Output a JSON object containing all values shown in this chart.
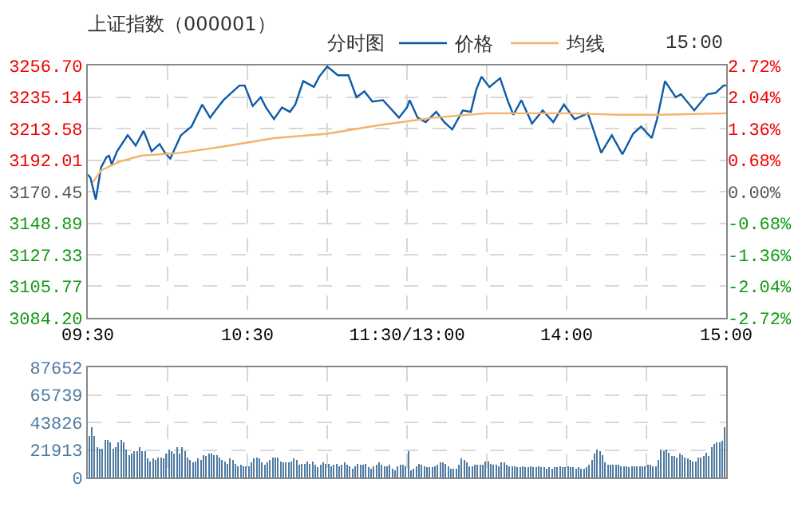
{
  "chart_data": [
    {
      "type": "line",
      "title": "上证指数（000001）",
      "subtitle": "分时图",
      "annotations": [
        "15:00"
      ],
      "legend": "top",
      "grid": true,
      "categories": [
        "09:30",
        null,
        null,
        null,
        null,
        null,
        null,
        null,
        null,
        null,
        null,
        null,
        null,
        null,
        null,
        null,
        null,
        null,
        null,
        null,
        null,
        null,
        null,
        null,
        null,
        null,
        null,
        null,
        null,
        null,
        null,
        null,
        null,
        null,
        null,
        null,
        null,
        null,
        null,
        null,
        null,
        null,
        null,
        null,
        null,
        null,
        null,
        null,
        null,
        null,
        null,
        null,
        null,
        null,
        null,
        null,
        null,
        null,
        null,
        null,
        "10:30",
        null,
        null,
        null,
        null,
        null,
        null,
        null,
        null,
        null,
        null,
        null,
        null,
        null,
        null,
        null,
        null,
        null,
        null,
        null,
        null,
        null,
        null,
        null,
        null,
        null,
        null,
        null,
        null,
        null,
        null,
        null,
        null,
        null,
        null,
        null,
        null,
        null,
        null,
        null,
        null,
        null,
        null,
        null,
        null,
        null,
        null,
        null,
        null,
        null,
        null,
        null,
        null,
        null,
        null,
        null,
        null,
        null,
        null,
        null,
        "11:30/13:00",
        null,
        null,
        null,
        null,
        null,
        null,
        null,
        null,
        null,
        null,
        null,
        null,
        null,
        null,
        null,
        null,
        null,
        null,
        null,
        null,
        null,
        null,
        null,
        null,
        null,
        null,
        null,
        null,
        null,
        null,
        null,
        null,
        null,
        null,
        null,
        null,
        null,
        null,
        null,
        null,
        null,
        null,
        null,
        null,
        null,
        null,
        null,
        null,
        null,
        null,
        null,
        null,
        null,
        null,
        null,
        null,
        null,
        null,
        null,
        "14:00",
        null,
        null,
        null,
        null,
        null,
        null,
        null,
        null,
        null,
        null,
        null,
        null,
        null,
        null,
        null,
        null,
        null,
        null,
        null,
        null,
        null,
        null,
        null,
        null,
        null,
        null,
        null,
        null,
        null,
        null,
        null,
        null,
        null,
        null,
        null,
        null,
        null,
        null,
        null,
        null,
        null,
        null,
        null,
        null,
        null,
        null,
        null,
        null,
        null,
        null,
        null,
        null,
        null,
        null,
        null,
        null,
        null,
        null,
        null,
        "15:00"
      ],
      "ylim": [
        3084.2,
        3256.7
      ],
      "yticks": [
        {
          "value": 3084.2,
          "label": "3084.20"
        },
        {
          "value": 3105.77,
          "label": "3105.77"
        },
        {
          "value": 3127.33,
          "label": "3127.33"
        },
        {
          "value": 3148.89,
          "label": "3148.89"
        },
        {
          "value": 3170.45,
          "label": "3170.45"
        },
        {
          "value": 3192.01,
          "label": "3192.01"
        },
        {
          "value": 3213.58,
          "label": "3213.58"
        },
        {
          "value": 3235.14,
          "label": "3235.14"
        },
        {
          "value": 3256.7,
          "label": "3256.70"
        }
      ],
      "y2lim": [
        -2.72,
        2.72
      ],
      "y2ticks": [
        {
          "value": -2.72,
          "label": "-2.72%"
        },
        {
          "value": -2.04,
          "label": "-2.04%"
        },
        {
          "value": -1.36,
          "label": "-1.36%"
        },
        {
          "value": -0.68,
          "label": "-0.68%"
        },
        {
          "value": 0,
          "label": "0.00%"
        },
        {
          "value": 0.68,
          "label": "0.68%"
        },
        {
          "value": 1.36,
          "label": "1.36%"
        },
        {
          "value": 2.04,
          "label": "2.04%"
        },
        {
          "value": 2.72,
          "label": "2.72%"
        }
      ],
      "series": [
        {
          "name": "价格",
          "color": "#0d5ba8",
          "values": [
            3182,
            3180,
            null,
            3165,
            null,
            3187,
            null,
            3194,
            3195,
            3189,
            null,
            3198,
            null,
            null,
            null,
            3209,
            null,
            null,
            3202,
            null,
            null,
            3212,
            null,
            null,
            3198,
            null,
            null,
            3203,
            null,
            3197,
            null,
            3193,
            null,
            null,
            null,
            3209,
            null,
            null,
            null,
            3215,
            null,
            null,
            null,
            3230,
            null,
            null,
            3221,
            null,
            3226,
            null,
            null,
            3233,
            null,
            null,
            null,
            null,
            null,
            3243,
            null,
            3243,
            null,
            null,
            3229,
            null,
            null,
            3235,
            null,
            3228,
            null,
            null,
            3220,
            null,
            null,
            3228,
            null,
            null,
            3225,
            null,
            3230,
            null,
            null,
            3246,
            null,
            null,
            null,
            3242,
            null,
            3249,
            null,
            null,
            3256,
            null,
            null,
            null,
            3250,
            null,
            null,
            null,
            3250,
            null,
            null,
            3235,
            null,
            null,
            3239,
            null,
            null,
            3232,
            null,
            null,
            null,
            3233,
            null,
            null,
            null,
            null,
            null,
            3221,
            null,
            null,
            3228,
            3233,
            null,
            null,
            3221,
            null,
            null,
            3218,
            null,
            null,
            null,
            3225,
            null,
            null,
            3218,
            null,
            null,
            3213,
            null,
            null,
            null,
            3226,
            null,
            null,
            3225,
            null,
            3240,
            null,
            3249,
            null,
            null,
            3242,
            null,
            null,
            null,
            3248,
            null,
            null,
            3232,
            null,
            3223,
            null,
            null,
            3233,
            null,
            null,
            null,
            3217,
            null,
            null,
            null,
            3226,
            null,
            null,
            null,
            3218,
            null,
            null,
            null,
            3230,
            null,
            null,
            null,
            3220,
            null,
            null,
            null,
            null,
            3224,
            null,
            null,
            null,
            null,
            3197,
            null,
            null,
            null,
            3209,
            null,
            null,
            null,
            3196,
            null,
            null,
            null,
            3210,
            null,
            null,
            3215,
            null,
            null,
            null,
            3207,
            null,
            3220,
            null,
            null,
            3246,
            null,
            null,
            null,
            3235,
            null,
            3237,
            null,
            null,
            null,
            null,
            3226,
            null,
            null,
            null,
            null,
            3237,
            null,
            null,
            3238,
            null,
            null,
            3243,
            3243
          ]
        },
        {
          "name": "均线",
          "color": "#f5b26b",
          "values": [
            null,
            null,
            3177,
            null,
            null,
            3185,
            null,
            null,
            null,
            null,
            null,
            null,
            3191,
            null,
            null,
            null,
            null,
            null,
            null,
            null,
            3195,
            null,
            null,
            null,
            null,
            null,
            null,
            null,
            null,
            null,
            null,
            null,
            null,
            null,
            null,
            3197,
            null,
            null,
            null,
            null,
            null,
            null,
            null,
            null,
            null,
            null,
            null,
            null,
            null,
            null,
            3201,
            null,
            null,
            null,
            null,
            null,
            null,
            null,
            null,
            null,
            null,
            null,
            null,
            null,
            null,
            null,
            null,
            null,
            null,
            null,
            3207,
            null,
            null,
            null,
            null,
            null,
            null,
            null,
            null,
            null,
            null,
            null,
            null,
            null,
            null,
            null,
            null,
            null,
            null,
            null,
            3210,
            null,
            null,
            null,
            null,
            null,
            null,
            null,
            null,
            null,
            null,
            null,
            null,
            null,
            null,
            null,
            null,
            null,
            null,
            null,
            3216,
            null,
            null,
            null,
            null,
            null,
            null,
            null,
            null,
            null,
            null,
            null,
            null,
            null,
            null,
            null,
            null,
            null,
            null,
            null,
            3221,
            null,
            null,
            null,
            null,
            null,
            null,
            null,
            null,
            null,
            null,
            null,
            null,
            null,
            null,
            null,
            null,
            null,
            null,
            null,
            3224,
            null,
            null,
            null,
            null,
            null,
            null,
            null,
            null,
            null,
            null,
            null,
            null,
            null,
            null,
            null,
            null,
            null,
            null,
            null,
            null,
            null,
            null,
            null,
            null,
            null,
            null,
            null,
            null,
            null,
            3224,
            null,
            null,
            null,
            null,
            null,
            null,
            null,
            null,
            null,
            null,
            null,
            null,
            null,
            null,
            null,
            null,
            null,
            null,
            null,
            3223,
            null,
            null,
            null,
            null,
            null,
            null,
            null,
            null,
            null,
            null,
            null,
            null,
            null,
            null,
            3223,
            null,
            null,
            null,
            null,
            null,
            null,
            null,
            null,
            null,
            null,
            null,
            null,
            null,
            null,
            null,
            null,
            null,
            null,
            null,
            null,
            null,
            null,
            null,
            null,
            3224
          ]
        }
      ]
    },
    {
      "type": "bar",
      "grid": true,
      "tick_labels": "y",
      "color": "#4f7aa1",
      "categories": [
        null,
        null,
        null,
        null,
        null,
        null,
        null,
        null,
        null,
        null,
        null,
        null,
        null,
        null,
        null,
        null,
        null,
        null,
        null,
        null,
        null,
        null,
        null,
        null,
        null,
        null,
        null,
        null,
        null,
        null,
        null,
        null,
        null,
        null,
        null,
        null,
        null,
        null,
        null,
        null,
        null,
        null,
        null,
        null,
        null,
        null,
        null,
        null,
        null,
        null,
        null,
        null,
        null,
        null,
        null,
        null,
        null,
        null,
        null,
        null,
        null,
        null,
        null,
        null,
        null,
        null,
        null,
        null,
        null,
        null,
        null,
        null,
        null,
        null,
        null,
        null,
        null,
        null,
        null,
        null,
        null,
        null,
        null,
        null,
        null,
        null,
        null,
        null,
        null,
        null,
        null,
        null,
        null,
        null,
        null,
        null,
        null,
        null,
        null,
        null,
        null,
        null,
        null,
        null,
        null,
        null,
        null,
        null,
        null,
        null,
        null,
        null,
        null,
        null,
        null,
        null,
        null,
        null,
        null,
        null,
        null,
        null,
        null,
        null,
        null,
        null,
        null,
        null,
        null,
        null,
        null,
        null,
        null,
        null,
        null,
        null,
        null,
        null,
        null,
        null,
        null,
        null,
        null,
        null,
        null,
        null,
        null,
        null,
        null,
        null,
        null,
        null,
        null,
        null,
        null,
        null,
        null,
        null,
        null,
        null,
        null,
        null,
        null,
        null,
        null,
        null,
        null,
        null,
        null,
        null,
        null,
        null,
        null,
        null,
        null,
        null,
        null,
        null,
        null,
        null,
        null,
        null,
        null,
        null,
        null,
        null,
        null,
        null,
        null,
        null,
        null,
        null,
        null,
        null,
        null,
        null,
        null,
        null,
        null,
        null,
        null,
        null,
        null,
        null,
        null,
        null,
        null,
        null,
        null,
        null,
        null,
        null,
        null,
        null,
        null,
        null,
        null,
        null,
        null,
        null,
        null,
        null,
        null,
        null,
        null,
        null,
        null,
        null,
        null,
        null,
        null,
        null,
        null,
        null,
        null,
        null,
        null,
        null,
        null,
        null
      ],
      "ylim": [
        0,
        87652
      ],
      "yticks": [
        0,
        21913,
        43826,
        65739,
        87652
      ],
      "values": [
        33000,
        40000,
        33000,
        24000,
        23000,
        23000,
        30000,
        30000,
        28000,
        23000,
        24000,
        28000,
        30000,
        28000,
        22000,
        18000,
        19000,
        21000,
        21000,
        24000,
        21000,
        21000,
        15000,
        13000,
        15000,
        14000,
        16000,
        16000,
        15000,
        19000,
        22000,
        21000,
        19000,
        24000,
        19000,
        24000,
        21000,
        16000,
        14000,
        12000,
        13000,
        15000,
        14000,
        18000,
        17000,
        19000,
        19000,
        18000,
        18000,
        16000,
        14000,
        13000,
        11000,
        15000,
        14000,
        11000,
        9000,
        10000,
        9000,
        9000,
        9000,
        12000,
        15000,
        16000,
        15000,
        12000,
        10000,
        12000,
        14000,
        16000,
        16000,
        16000,
        13000,
        12000,
        12000,
        12000,
        13000,
        15000,
        14000,
        10000,
        11000,
        11000,
        13000,
        11000,
        13000,
        10000,
        8000,
        10000,
        12000,
        11000,
        11000,
        9000,
        10000,
        11000,
        9000,
        10000,
        12000,
        10000,
        9000,
        7000,
        9000,
        11000,
        10000,
        10000,
        11000,
        8000,
        7000,
        9000,
        10000,
        12000,
        10000,
        9000,
        9000,
        10000,
        7000,
        6000,
        9000,
        10000,
        10000,
        9000,
        21000,
        6000,
        7000,
        9000,
        11000,
        10000,
        9000,
        8000,
        8000,
        8000,
        9000,
        10000,
        12000,
        12000,
        11000,
        9000,
        7000,
        7000,
        7000,
        10000,
        15000,
        14000,
        12000,
        9000,
        9000,
        10000,
        10000,
        10000,
        10000,
        13000,
        13000,
        11000,
        10000,
        10000,
        9000,
        12000,
        12000,
        10000,
        9000,
        9000,
        9000,
        8000,
        8000,
        9000,
        8000,
        8000,
        9000,
        8000,
        8000,
        9000,
        8000,
        8000,
        7000,
        8000,
        7000,
        8000,
        8000,
        9000,
        8000,
        8000,
        9000,
        8000,
        8000,
        7000,
        8000,
        7000,
        7000,
        8000,
        10000,
        14000,
        19000,
        22000,
        21000,
        18000,
        12000,
        10000,
        10000,
        10000,
        10000,
        10000,
        9000,
        9000,
        9000,
        8000,
        9000,
        9000,
        9000,
        9000,
        9000,
        9000,
        10000,
        10000,
        9000,
        9000,
        14000,
        22000,
        21000,
        22000,
        20000,
        17000,
        17000,
        16000,
        19000,
        18000,
        16000,
        15000,
        14000,
        13000,
        13000,
        16000,
        16000,
        17000,
        20000,
        17000,
        24000,
        27000,
        28000,
        28000,
        29000,
        40000
      ]
    }
  ]
}
